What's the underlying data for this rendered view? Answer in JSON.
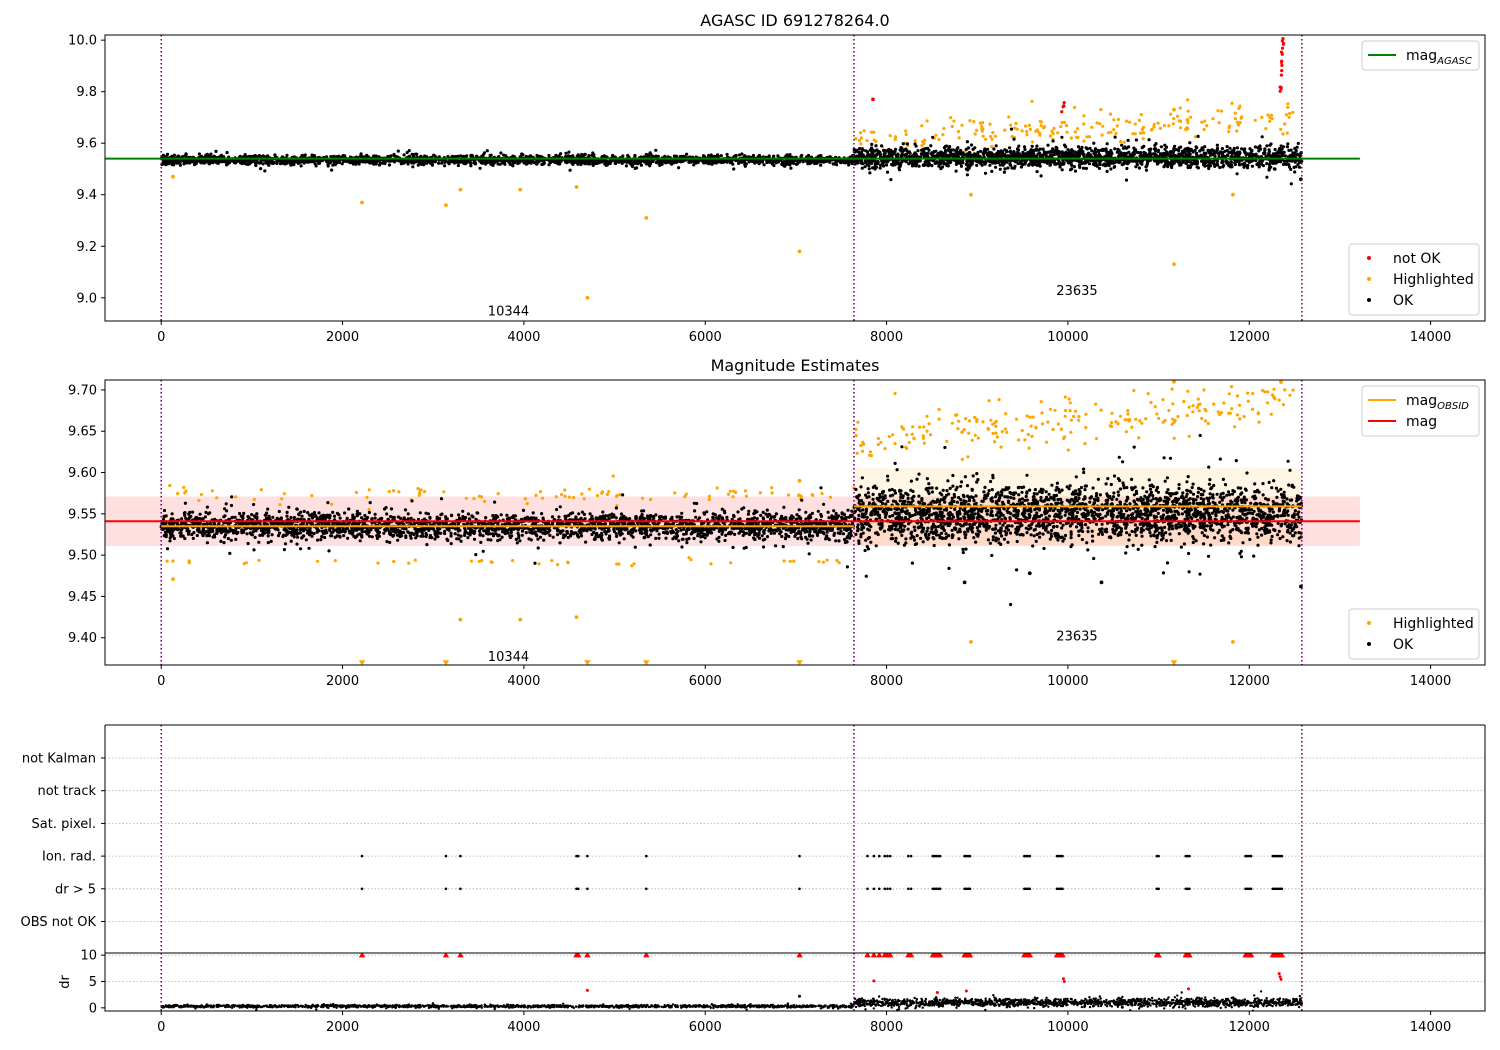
{
  "colors": {
    "ok": "#000000",
    "highlighted": "#ffa500",
    "not_ok": "#ff0000",
    "mag_agasc_line": "#008000",
    "mag_line": "#ff0000",
    "mag_obsid_line": "#ffa500",
    "obsid_boundary": "#800080",
    "grid": "#b0b0b0"
  },
  "chart_data": [
    {
      "id": "top",
      "type": "scatter",
      "title": "AGASC ID 691278264.0",
      "xlim": [
        -620,
        14600
      ],
      "ylim": [
        8.91,
        10.02
      ],
      "xticks": [
        0,
        2000,
        4000,
        6000,
        8000,
        10000,
        12000,
        14000
      ],
      "xtick_labels": [
        "0",
        "2000",
        "4000",
        "6000",
        "8000",
        "10000",
        "12000",
        "14000"
      ],
      "yticks": [
        9.0,
        9.2,
        9.4,
        9.6,
        9.8,
        10.0
      ],
      "ytick_labels": [
        "9.0",
        "9.2",
        "9.4",
        "9.6",
        "9.8",
        "10.0"
      ],
      "obsid_boundaries": [
        0,
        7640,
        12580
      ],
      "obsid_labels": [
        {
          "text": "10344",
          "x": 3830,
          "y": 8.95
        },
        {
          "text": "23635",
          "x": 10100,
          "y": 9.03
        }
      ],
      "reference_lines": [
        {
          "name": "mag_AGASC",
          "y": 9.54,
          "x": [
            -620,
            13220
          ],
          "color": "#008000"
        }
      ],
      "series": [
        {
          "name": "not OK",
          "segments": [
            {
              "x0": 12340,
              "x1": 12380,
              "y0": 9.79,
              "y1": 10.02,
              "n": 16,
              "noise": 0.08
            },
            {
              "x0": 9920,
              "x1": 9960,
              "y0": 9.71,
              "y1": 9.75,
              "n": 5,
              "noise": 0.02
            }
          ],
          "points": [
            [
              7850,
              9.77
            ]
          ]
        },
        {
          "name": "Highlighted",
          "segments": [
            {
              "x0": 7660,
              "x1": 12500,
              "y0": 9.62,
              "y1": 9.7,
              "n": 200,
              "noise": 0.06
            }
          ],
          "points": [
            [
              2215,
              9.37
            ],
            [
              3140,
              9.36
            ],
            [
              3300,
              9.42
            ],
            [
              3960,
              9.42
            ],
            [
              4580,
              9.43
            ],
            [
              4700,
              9.0
            ],
            [
              5350,
              9.31
            ],
            [
              7040,
              9.18
            ],
            [
              8930,
              9.4
            ],
            [
              11170,
              9.13
            ],
            [
              11820,
              9.4
            ],
            [
              130,
              9.47
            ],
            [
              11170,
              9.73
            ],
            [
              11320,
              9.69
            ]
          ]
        },
        {
          "name": "OK",
          "segments": [
            {
              "x0": 0,
              "x1": 7640,
              "y0": 9.535,
              "y1": 9.535,
              "n": 2200,
              "noise": 0.018
            },
            {
              "x0": 7640,
              "x1": 12580,
              "y0": 9.545,
              "y1": 9.545,
              "n": 1900,
              "noise": 0.04
            }
          ],
          "points": [
            [
              12570,
              9.46
            ]
          ]
        }
      ],
      "legends": [
        {
          "position": "upper-right",
          "entries": [
            {
              "label_main": "mag",
              "label_sub": "AGASC",
              "kind": "line",
              "color": "#008000"
            }
          ]
        },
        {
          "position": "lower-right",
          "entries": [
            {
              "label": "not OK",
              "kind": "marker",
              "color": "#ff0000"
            },
            {
              "label": "Highlighted",
              "kind": "marker",
              "color": "#ffa500"
            },
            {
              "label": "OK",
              "kind": "marker",
              "color": "#000000"
            }
          ]
        }
      ]
    },
    {
      "id": "middle",
      "type": "scatter",
      "title": "Magnitude Estimates",
      "xlim": [
        -620,
        14600
      ],
      "ylim": [
        9.367,
        9.712
      ],
      "xticks": [
        0,
        2000,
        4000,
        6000,
        8000,
        10000,
        12000,
        14000
      ],
      "xtick_labels": [
        "0",
        "2000",
        "4000",
        "6000",
        "8000",
        "10000",
        "12000",
        "14000"
      ],
      "yticks": [
        9.4,
        9.45,
        9.5,
        9.55,
        9.6,
        9.65,
        9.7
      ],
      "ytick_labels": [
        "9.40",
        "9.45",
        "9.50",
        "9.55",
        "9.60",
        "9.65",
        "9.70"
      ],
      "obsid_boundaries": [
        0,
        7640,
        12580
      ],
      "obsid_labels": [
        {
          "text": "10344",
          "x": 3830,
          "y": 9.378
        },
        {
          "text": "23635",
          "x": 10100,
          "y": 9.403
        }
      ],
      "bands": [
        {
          "x0": -620,
          "x1": 13220,
          "y0": 9.511,
          "y1": 9.571,
          "color": "#ff0000",
          "opacity": 0.12
        },
        {
          "x0": 7640,
          "x1": 12580,
          "y0": 9.512,
          "y1": 9.606,
          "color": "#ffa500",
          "opacity": 0.1
        }
      ],
      "reference_lines": [
        {
          "name": "mag",
          "y": 9.541,
          "x": [
            -620,
            13220
          ],
          "color": "#ff0000"
        },
        {
          "name": "mag_OBSID",
          "y": 9.535,
          "x": [
            0,
            7640
          ],
          "color": "#ffa500"
        },
        {
          "name": "mag_OBSID",
          "y": 9.559,
          "x": [
            7640,
            12580
          ],
          "color": "#ffa500"
        }
      ],
      "series": [
        {
          "name": "Highlighted",
          "segments": [
            {
              "x0": 7660,
              "x1": 12500,
              "y0": 9.64,
              "y1": 9.69,
              "n": 220,
              "noise": 0.03
            },
            {
              "x0": 0,
              "x1": 7640,
              "y0": 9.573,
              "y1": 9.573,
              "n": 90,
              "noise": 0.008
            },
            {
              "x0": 0,
              "x1": 7640,
              "y0": 9.492,
              "y1": 9.492,
              "n": 40,
              "noise": 0.004
            }
          ],
          "points": [
            [
              130,
              9.471
            ],
            [
              3300,
              9.422
            ],
            [
              3960,
              9.422
            ],
            [
              4580,
              9.425
            ],
            [
              8930,
              9.395
            ],
            [
              11820,
              9.395
            ],
            [
              7040,
              9.59
            ],
            [
              11170,
              9.71
            ],
            [
              12350,
              9.71
            ]
          ]
        },
        {
          "name": "Highlighted (clipped below axis)",
          "marker": "triangle-down",
          "points": [
            [
              2215,
              9.37
            ],
            [
              3140,
              9.37
            ],
            [
              4700,
              9.37
            ],
            [
              5350,
              9.37
            ],
            [
              7040,
              9.37
            ],
            [
              11170,
              9.37
            ]
          ]
        },
        {
          "name": "OK",
          "segments": [
            {
              "x0": 0,
              "x1": 7640,
              "y0": 9.535,
              "y1": 9.535,
              "n": 2600,
              "noise": 0.016
            },
            {
              "x0": 7640,
              "x1": 12580,
              "y0": 9.55,
              "y1": 9.55,
              "n": 2400,
              "noise": 0.034
            }
          ],
          "points": [
            [
              12570,
              9.462
            ],
            [
              10370,
              9.467
            ],
            [
              8860,
              9.467
            ],
            [
              9580,
              9.478
            ]
          ]
        }
      ],
      "legends": [
        {
          "position": "upper-right",
          "entries": [
            {
              "label_main": "mag",
              "label_sub": "OBSID",
              "kind": "line",
              "color": "#ffa500"
            },
            {
              "label": "mag",
              "kind": "line",
              "color": "#ff0000"
            }
          ]
        },
        {
          "position": "lower-right",
          "entries": [
            {
              "label": "Highlighted",
              "kind": "marker",
              "color": "#ffa500"
            },
            {
              "label": "OK",
              "kind": "marker",
              "color": "#000000"
            }
          ]
        }
      ]
    },
    {
      "id": "flags",
      "type": "scatter",
      "xlim": [
        -620,
        14600
      ],
      "grid": "horizontal-dotted",
      "category_labels": [
        "not Kalman",
        "not track",
        "Sat. pixel.",
        "Ion. rad.",
        "dr > 5",
        "OBS not OK"
      ],
      "obsid_boundaries": [
        0,
        7640,
        12580
      ],
      "flag_points": {
        "Ion. rad.": [
          2215,
          3140,
          3300,
          4580,
          4600,
          4700,
          5350,
          7040,
          7790,
          7860,
          7920,
          7980,
          8010,
          8040,
          8240,
          8270,
          8510,
          8530,
          8550,
          8570,
          8590,
          8860,
          8880,
          8900,
          8920,
          9520,
          9540,
          9560,
          9580,
          9880,
          9900,
          9920,
          9940,
          10980,
          11000,
          11300,
          11320,
          11340,
          11960,
          11980,
          12000,
          12020,
          12260,
          12280,
          12300,
          12320,
          12340,
          12360
        ]
      }
    },
    {
      "id": "dr",
      "type": "scatter",
      "xlim": [
        -620,
        14600
      ],
      "ylim": [
        -0.6,
        10.4
      ],
      "ylabel": "dr",
      "yticks": [
        0,
        5,
        10
      ],
      "ytick_labels": [
        "0",
        "5",
        "10"
      ],
      "xticks": [
        0,
        2000,
        4000,
        6000,
        8000,
        10000,
        12000,
        14000
      ],
      "xtick_labels": [
        "0",
        "2000",
        "4000",
        "6000",
        "8000",
        "10000",
        "12000",
        "14000"
      ],
      "obsid_boundaries": [
        0,
        7640,
        12580
      ],
      "series": [
        {
          "name": "OK",
          "segments": [
            {
              "x0": 0,
              "x1": 7640,
              "y0": 0.3,
              "y1": 0.3,
              "n": 1500,
              "noise": 0.25
            },
            {
              "x0": 7640,
              "x1": 12580,
              "y0": 1.0,
              "y1": 1.0,
              "n": 1500,
              "noise": 0.8
            }
          ],
          "points": [
            [
              7040,
              2.2
            ],
            [
              10600,
              0.1
            ]
          ]
        },
        {
          "name": "not OK",
          "points": [
            [
              4700,
              3.3
            ],
            [
              7860,
              5.1
            ],
            [
              8560,
              2.9
            ],
            [
              8880,
              3.2
            ],
            [
              9950,
              5.5
            ],
            [
              9960,
              5.0
            ],
            [
              11330,
              3.6
            ],
            [
              12330,
              6.5
            ],
            [
              12340,
              5.9
            ],
            [
              12350,
              5.4
            ]
          ]
        },
        {
          "name": "not OK (clipped above axis)",
          "marker": "triangle-up",
          "points": [
            [
              2215,
              10
            ],
            [
              3140,
              10
            ],
            [
              3300,
              10
            ],
            [
              4580,
              10
            ],
            [
              4600,
              10
            ],
            [
              4700,
              10
            ],
            [
              5350,
              10
            ],
            [
              7040,
              10
            ],
            [
              7790,
              10
            ],
            [
              7860,
              10
            ],
            [
              7920,
              10
            ],
            [
              7980,
              10
            ],
            [
              8010,
              10
            ],
            [
              8040,
              10
            ],
            [
              8240,
              10
            ],
            [
              8270,
              10
            ],
            [
              8510,
              10
            ],
            [
              8530,
              10
            ],
            [
              8550,
              10
            ],
            [
              8570,
              10
            ],
            [
              8590,
              10
            ],
            [
              8860,
              10
            ],
            [
              8880,
              10
            ],
            [
              8900,
              10
            ],
            [
              8920,
              10
            ],
            [
              9520,
              10
            ],
            [
              9540,
              10
            ],
            [
              9560,
              10
            ],
            [
              9580,
              10
            ],
            [
              9880,
              10
            ],
            [
              9900,
              10
            ],
            [
              9920,
              10
            ],
            [
              9940,
              10
            ],
            [
              10980,
              10
            ],
            [
              11000,
              10
            ],
            [
              11300,
              10
            ],
            [
              11320,
              10
            ],
            [
              11340,
              10
            ],
            [
              11960,
              10
            ],
            [
              11980,
              10
            ],
            [
              12000,
              10
            ],
            [
              12020,
              10
            ],
            [
              12260,
              10
            ],
            [
              12280,
              10
            ],
            [
              12300,
              10
            ],
            [
              12320,
              10
            ],
            [
              12340,
              10
            ],
            [
              12360,
              10
            ]
          ]
        }
      ]
    }
  ]
}
